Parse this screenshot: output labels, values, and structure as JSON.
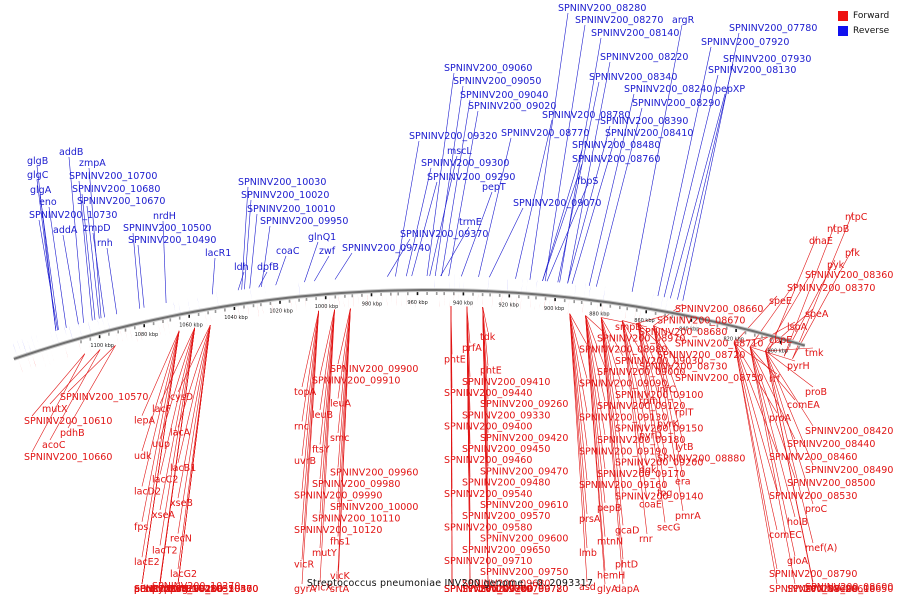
{
  "caption": "Streptococcus pneumoniae INV200 genome. - 0..2093317",
  "legend": [
    {
      "label": "Forward",
      "color": "#ee1111"
    },
    {
      "label": "Reverse",
      "color": "#1111ee"
    }
  ],
  "colors": {
    "forward": "#ee1111",
    "reverse": "#1111ee",
    "backbone": "#777777"
  },
  "ticks": [
    "800 kbp",
    "820 kbp",
    "840 kbp",
    "860 kbp",
    "880 kbp",
    "900 kbp",
    "920 kbp",
    "940 kbp",
    "960 kbp",
    "980 kbp",
    "1000 kbp",
    "1020 kbp",
    "1040 kbp",
    "1060 kbp",
    "1080 kbp",
    "1100 kbp"
  ],
  "reverse_labels": [
    "SPNINV200_08280",
    "SPNINV200_08270",
    "argR",
    "SPNINV200_08140",
    "SPNINV200_07780",
    "SPNINV200_07920",
    "SPNINV200_08220",
    "SPNINV200_07930",
    "SPNINV200_08340",
    "SPNINV200_08130",
    "SPNINV200_08240",
    "pepXP",
    "SPNINV200_08290",
    "SPNINV200_08390",
    "SPNINV200_08410",
    "SPNINV200_08480",
    "SPNINV200_08760",
    "fbpS",
    "SPNINV200_09060",
    "SPNINV200_09050",
    "SPNINV200_09040",
    "SPNINV200_09020",
    "SPNINV200_08780",
    "SPNINV200_09320",
    "SPNINV200_08770",
    "mscL",
    "SPNINV200_09300",
    "SPNINV200_09290",
    "pepT",
    "SPNINV200_09070",
    "trmE",
    "SPNINV200_09370",
    "SPNINV200_09740",
    "SPNINV200_10030",
    "SPNINV200_10020",
    "SPNINV200_10010",
    "SPNINV200_09950",
    "glnQ1",
    "coaC",
    "zwf",
    "dpfB",
    "ldh",
    "lacR1",
    "nrdH",
    "SPNINV200_10500",
    "SPNINV200_10490",
    "glgB",
    "addB",
    "zmpA",
    "glgC",
    "SPNINV200_10700",
    "glgA",
    "SPNINV200_10680",
    "eno",
    "SPNINV200_10670",
    "SPNINV200_10730",
    "zmpD",
    "addA",
    "rnh"
  ],
  "forward_labels": [
    "ntpC",
    "ntpB",
    "dnaE",
    "pfk",
    "pyk",
    "SPNINV200_08360",
    "SPNINV200_08370",
    "speE",
    "speA",
    "lspA",
    "cbpE",
    "tmk",
    "pyrH",
    "rrf",
    "proB",
    "comEA",
    "proA",
    "SPNINV200_08420",
    "SPNINV200_08440",
    "SPNINV200_08460",
    "SPNINV200_08490",
    "SPNINV200_08500",
    "SPNINV200_08530",
    "proC",
    "holB",
    "comEC",
    "mef(A)",
    "gloA",
    "SPNINV200_08790",
    "SPNINV200_08600",
    "SPNINV200_08610",
    "SPNINV200_08620",
    "SPNINV200_08650",
    "SPNINV200_08660",
    "SPNINV200_08670",
    "SPNINV200_08680",
    "SPNINV200_08710",
    "SPNINV200_08720",
    "SPNINV200_08730",
    "SPNINV200_08750",
    "infC",
    "rpmI",
    "rplT",
    "pyrK",
    "pyrD",
    "lytB",
    "SPNINV200_08880",
    "dgk",
    "era",
    "fpg",
    "coaE",
    "pmrA",
    "secG",
    "rnr",
    "smpB",
    "SPNINV200_08970",
    "SPNINV200_08980",
    "SPNINV200_09030",
    "SPNINV200_09000",
    "SPNINV200_09090",
    "SPNINV200_09100",
    "SPNINV200_09120",
    "SPNINV200_09130",
    "SPNINV200_09150",
    "SPNINV200_09180",
    "SPNINV200_09190",
    "SPNINV200_09200",
    "SPNINV200_09170",
    "SPNINV200_09160",
    "SPNINV200_09140",
    "pepB",
    "prsA",
    "gcaD",
    "mtnN",
    "lmb",
    "phtD",
    "hemH",
    "asd",
    "dapA",
    "glyA",
    "tdk",
    "prfA",
    "phtE",
    "phtE",
    "SPNINV200_09410",
    "SPNINV200_09440",
    "SPNINV200_09260",
    "SPNINV200_09330",
    "SPNINV200_09400",
    "SPNINV200_09420",
    "SPNINV200_09450",
    "SPNINV200_09460",
    "SPNINV200_09470",
    "SPNINV200_09480",
    "SPNINV200_09540",
    "SPNINV200_09610",
    "SPNINV200_09570",
    "SPNINV200_09580",
    "SPNINV200_09600",
    "SPNINV200_09650",
    "SPNINV200_09710",
    "SPNINV200_09750",
    "SPNINV200_09680",
    "SPNINV200_09700",
    "SPNINV200_09720",
    "SPNINV200_09730",
    "SPNINV200_09770",
    "SPNINV200_09780",
    "SPNINV200_09790",
    "SPNINV200_09860",
    "SPNINV200_09900",
    "SPNINV200_09910",
    "topA",
    "leuA",
    "leuB",
    "rnc",
    "smc",
    "ftsY",
    "uvrB",
    "SPNINV200_09960",
    "SPNINV200_09980",
    "SPNINV200_09990",
    "SPNINV200_10000",
    "SPNINV200_10110",
    "SPNINV200_10120",
    "fhs1",
    "mutY",
    "vicR",
    "vicK",
    "vicX",
    "gyrA",
    "srtA",
    "cysD",
    "lacF",
    "lepA",
    "lacA",
    "uup",
    "udk",
    "lacB1",
    "lacC2",
    "lacD2",
    "xseB",
    "xseA",
    "fps",
    "recN",
    "lacT2",
    "lacE2",
    "lacG2",
    "SPNINV200_10270",
    "SPNINV200_10280",
    "SPNINV200_10300",
    "SPNINV200_10320",
    "SPNINV200_10450",
    "SPNINV200_10470",
    "truB",
    "ptsH",
    "pstI",
    "phpA",
    "acoL",
    "ung",
    "pyrC",
    "pdhA",
    "SPNINV200_10560",
    "SPNINV200_10550",
    "SPNINV200_10570",
    "mutX",
    "SPNINV200_10610",
    "pdhB",
    "acoC",
    "SPNINV200_10660"
  ]
}
